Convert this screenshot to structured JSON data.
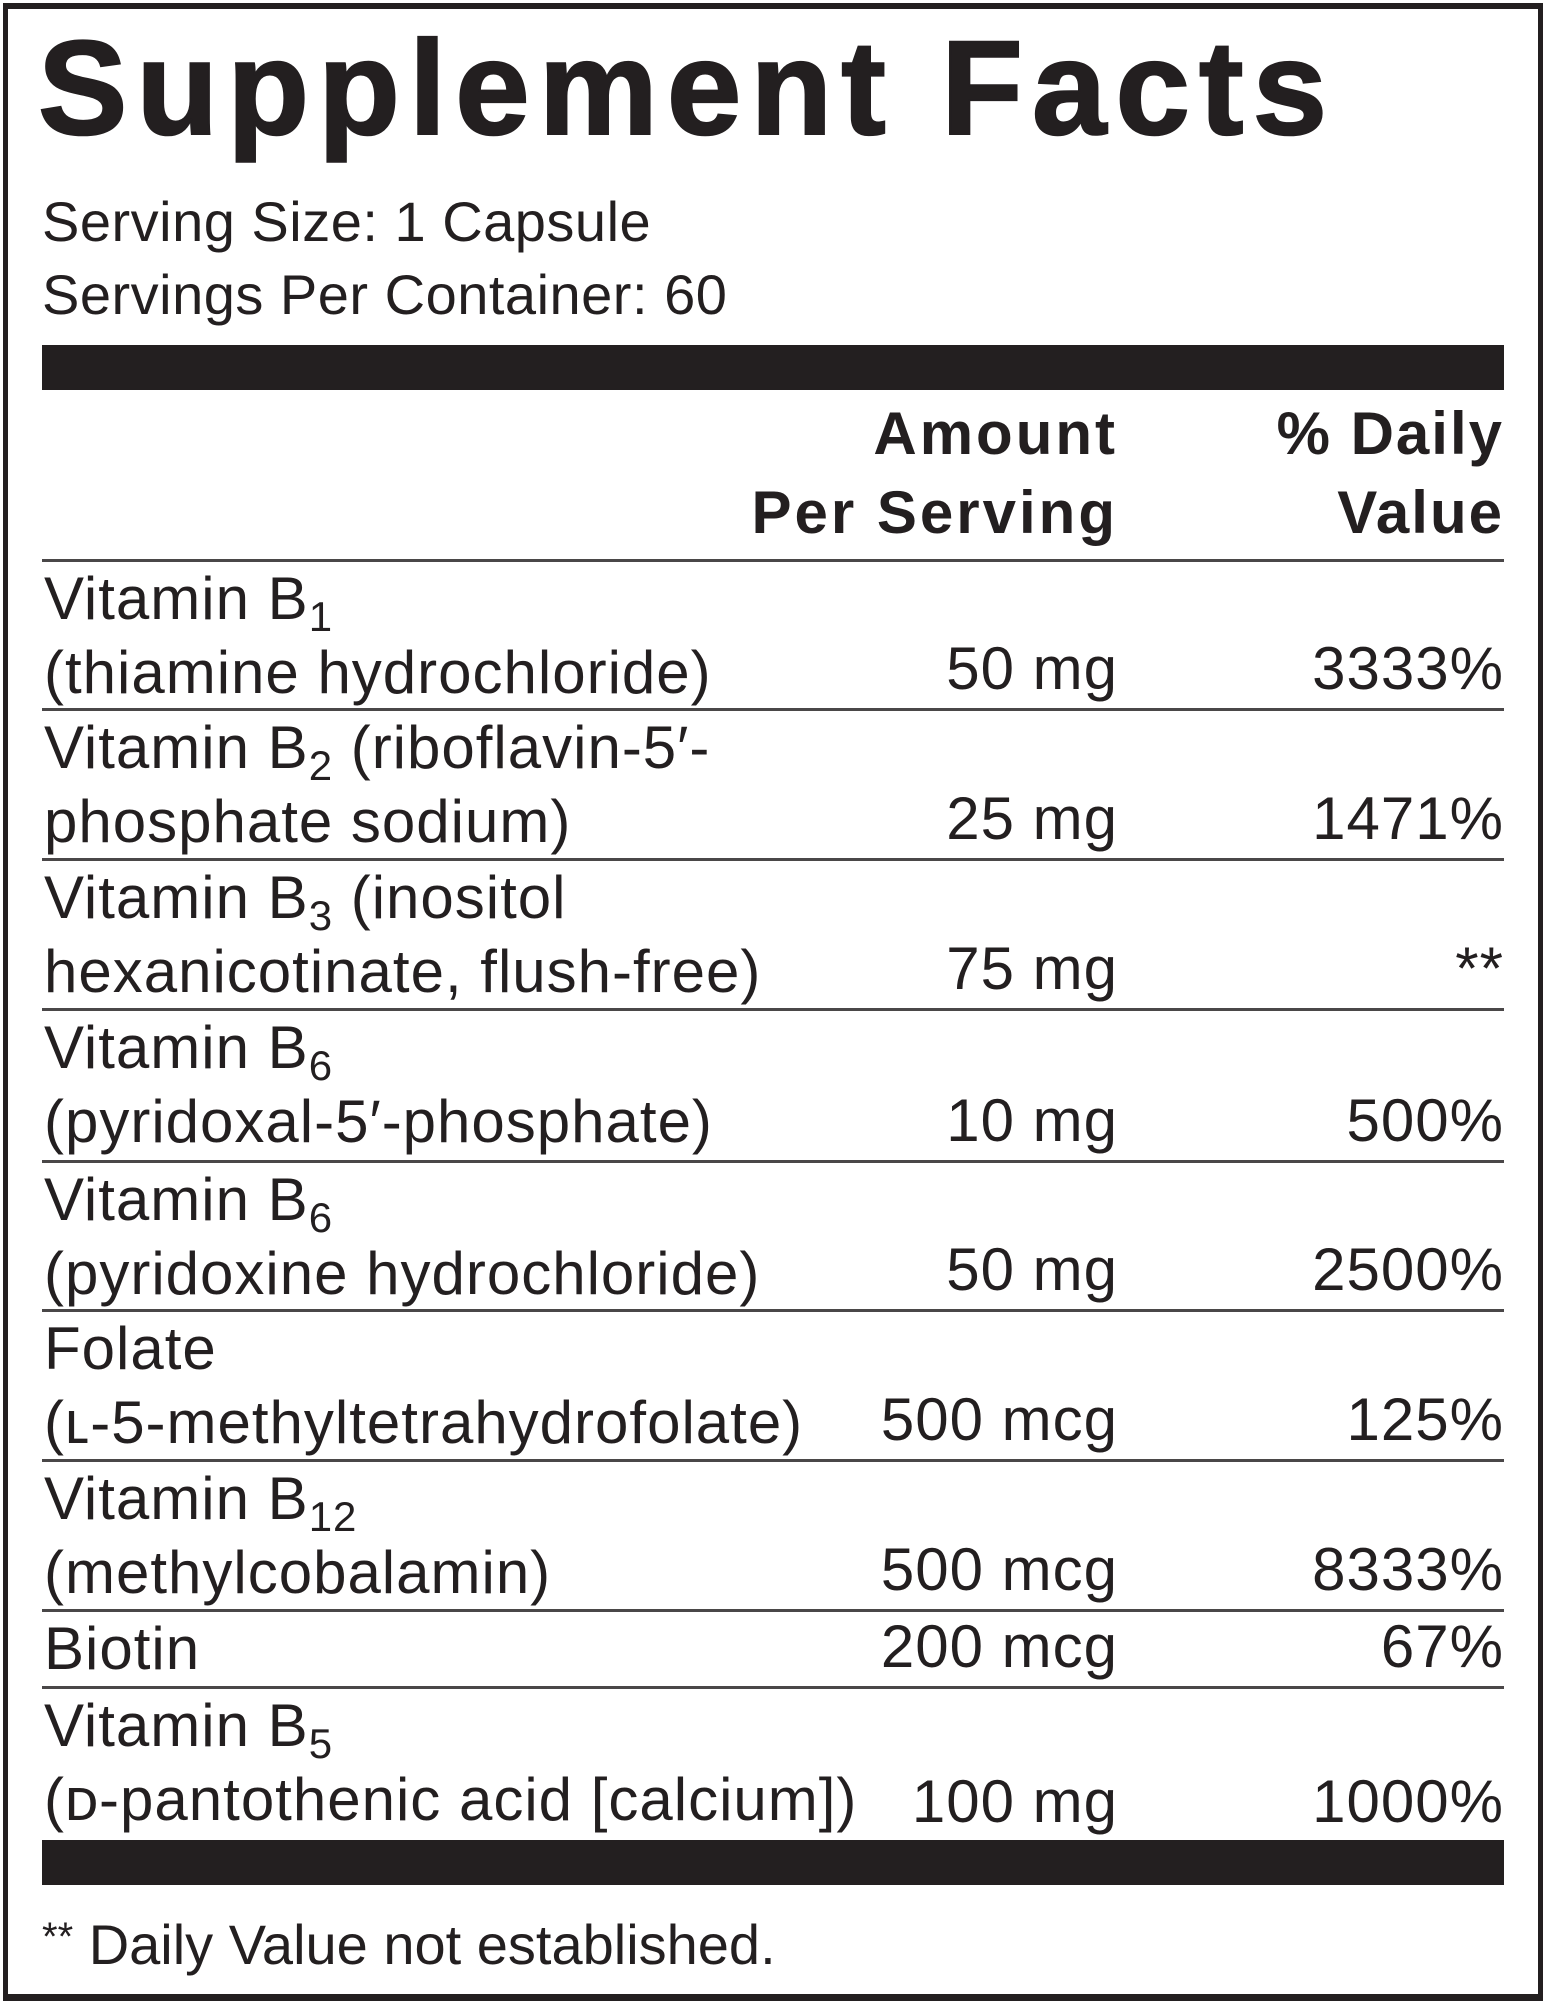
{
  "title": "Supplement Facts",
  "serving_size": "Serving Size: 1 Capsule",
  "servings_per_container": "Servings Per Container: 60",
  "header": {
    "amount_line1": "Amount",
    "amount_line2": "Per Serving",
    "dv_line1": "% Daily",
    "dv_line2": "Value"
  },
  "rows": [
    {
      "name": "Vitamin B",
      "sub": "1",
      "rest": "",
      "detail": "(thiamine hydrochloride)",
      "amount": "50 mg",
      "dv": "3333%"
    },
    {
      "name": "Vitamin B",
      "sub": "2",
      "rest": " (riboflavin-5′-",
      "detail": "phosphate sodium)",
      "amount": "25 mg",
      "dv": "1471%"
    },
    {
      "name": "Vitamin B",
      "sub": "3",
      "rest": " (inositol",
      "detail": "hexanicotinate, flush-free)",
      "amount": "75 mg",
      "dv": "**"
    },
    {
      "name": "Vitamin B",
      "sub": "6",
      "rest": "",
      "detail": "(pyridoxal-5′-phosphate)",
      "amount": "10 mg",
      "dv": "500%"
    },
    {
      "name": "Vitamin B",
      "sub": "6",
      "rest": "",
      "detail": "(pyridoxine hydrochloride)",
      "amount": "50 mg",
      "dv": "2500%"
    },
    {
      "name": "Folate",
      "sub": "",
      "rest": "",
      "detail": "(ʟ-5-methyltetrahydrofolate)",
      "amount": "500 mcg",
      "dv": "125%"
    },
    {
      "name": "Vitamin B",
      "sub": "12",
      "rest": "",
      "detail": "(methylcobalamin)",
      "amount": "500 mcg",
      "dv": "8333%"
    },
    {
      "name": "Biotin",
      "sub": "",
      "rest": "",
      "detail": "",
      "amount": "200 mcg",
      "dv": "67%"
    },
    {
      "name": "Vitamin B",
      "sub": "5",
      "rest": "",
      "detail": "(ᴅ-pantothenic acid [calcium])",
      "amount": "100 mg",
      "dv": "1000%"
    }
  ],
  "footnote": {
    "marker": "**",
    "text": " Daily Value not established."
  }
}
